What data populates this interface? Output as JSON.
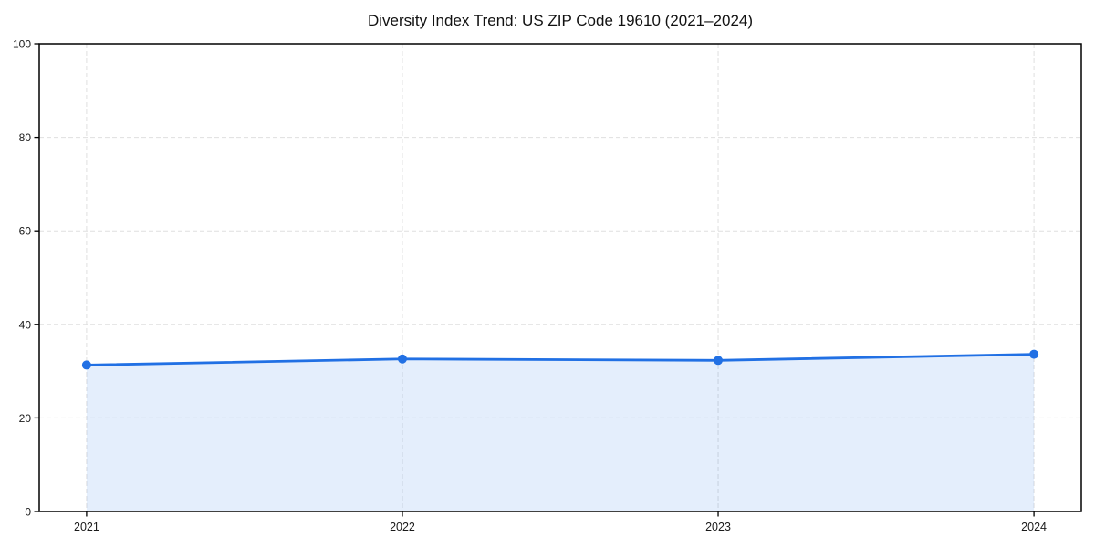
{
  "chart_data": {
    "type": "line",
    "title": "Diversity Index Trend: US ZIP Code 19610 (2021–2024)",
    "x": [
      2021,
      2022,
      2023,
      2024
    ],
    "x_tick_labels": [
      "2021",
      "2022",
      "2023",
      "2024"
    ],
    "series": [
      {
        "name": "Diversity Index",
        "values": [
          31.3,
          32.6,
          32.3,
          33.6
        ]
      }
    ],
    "xlabel": "",
    "ylabel": "",
    "ylim": [
      0,
      100
    ],
    "yticks": [
      0,
      20,
      40,
      60,
      80,
      100
    ],
    "grid": true,
    "grid_style": "dashed",
    "legend_position": "none",
    "area_fill": true,
    "colors": {
      "line": "#2170e4",
      "marker": "#2170e4",
      "fill": "rgba(33,112,228,0.12)",
      "grid": "#dfdfdf",
      "axis": "#000000",
      "tick_text": "#1a1a1a",
      "title_text": "#111111",
      "background": "#ffffff"
    }
  }
}
